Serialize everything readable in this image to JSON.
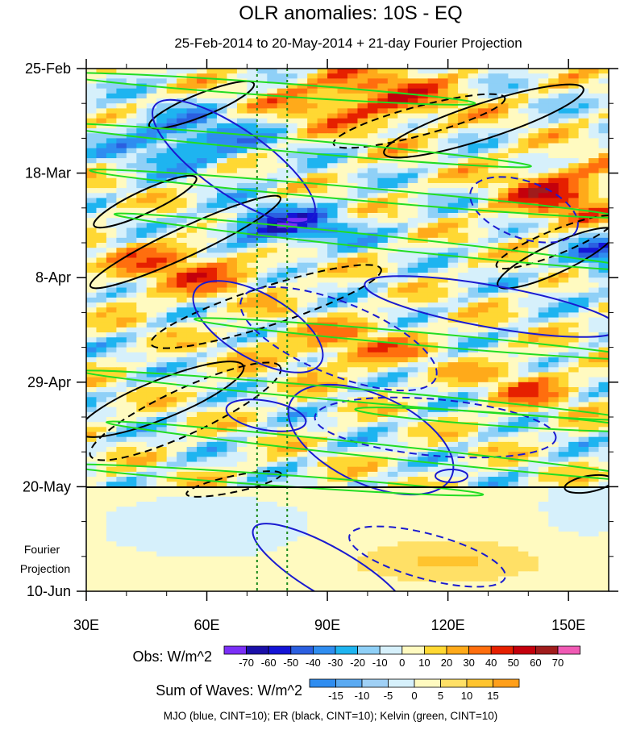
{
  "header": {
    "title": "OLR anomalies: 10S - EQ",
    "subtitle": "25-Feb-2014 to 20-May-2014 + 21-day Fourier Projection"
  },
  "chart_data": {
    "type": "heatmap",
    "title": "OLR anomalies: 10S - EQ",
    "subtitle": "25-Feb-2014 to 20-May-2014 + 21-day Fourier Projection",
    "x_axis": {
      "range": [
        30,
        160
      ],
      "ticks": [
        30,
        60,
        90,
        120,
        150
      ],
      "tick_labels": [
        "30E",
        "60E",
        "90E",
        "120E",
        "150E"
      ]
    },
    "y_axis": {
      "reversed": true,
      "tick_labels": [
        "25-Feb",
        "18-Mar",
        "8-Apr",
        "29-Apr",
        "20-May",
        "10-Jun"
      ],
      "tick_days_from_start": [
        0,
        21,
        42,
        63,
        84,
        105
      ]
    },
    "observation_end": "20-May",
    "projection_label": [
      "Fourier",
      "Projection"
    ],
    "reference_longitudes": [
      72.5,
      80
    ],
    "obs_colorbar": {
      "label": "Obs: W/m^2",
      "levels": [
        -70,
        -60,
        -50,
        -40,
        -30,
        -20,
        -10,
        0,
        10,
        20,
        30,
        40,
        50,
        60,
        70
      ],
      "level_labels": [
        "-70",
        "-60",
        "-50",
        "-40",
        "-30",
        "-20",
        "-10",
        "0",
        "10",
        "20",
        "30",
        "40",
        "50",
        "60",
        "70"
      ],
      "colors": [
        "#7b2ff7",
        "#1a0fa8",
        "#1414d6",
        "#2b5fe0",
        "#2f8df0",
        "#1eb4f0",
        "#8fd0f7",
        "#d6f0fb",
        "#fffac0",
        "#ffd833",
        "#ffaa1a",
        "#ff6e0e",
        "#e62000",
        "#c4000c",
        "#a01c1c",
        "#f05ab4"
      ]
    },
    "waves_colorbar": {
      "label": "Sum of Waves: W/m^2",
      "levels": [
        -15,
        -10,
        -5,
        0,
        5,
        10,
        15
      ],
      "level_labels": [
        "-15",
        "-10",
        "-5",
        "0",
        "5",
        "10",
        "15"
      ],
      "colors": [
        "#2f8df0",
        "#5aaaf2",
        "#9fd0f5",
        "#d6f0fb",
        "#fffac0",
        "#ffe066",
        "#ffc42e",
        "#ff9f1a"
      ]
    },
    "legend_note": "MJO (blue, CINT=10); ER (black, CINT=10); Kelvin (green, CINT=10)",
    "series": [
      {
        "color_name": "blue",
        "color": "#1a1ad0",
        "wave": "MJO"
      },
      {
        "color_name": "black",
        "color": "#000000",
        "wave": "ER"
      },
      {
        "color_name": "green",
        "color": "#22dd22",
        "wave": "Kelvin"
      }
    ]
  }
}
